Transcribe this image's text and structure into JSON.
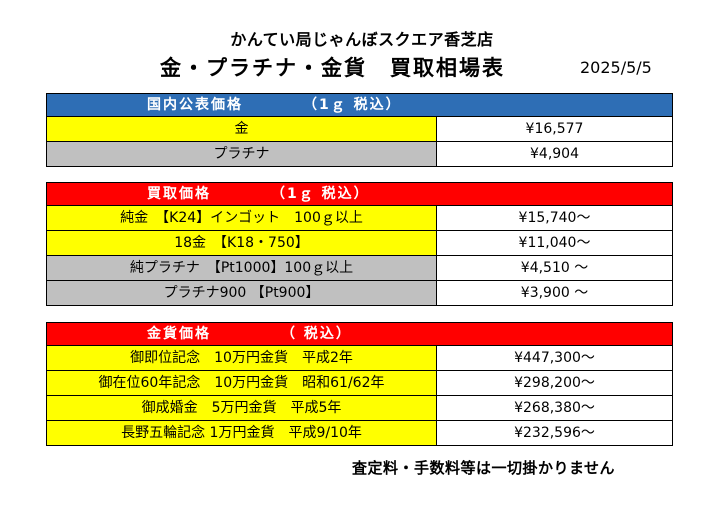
{
  "header": {
    "store_name": "かんてい局じゃんぼスクエア香芝店",
    "title": "金・プラチナ・金貨　買取相場表",
    "date": "2025/5/5"
  },
  "domestic": {
    "header_label": "国内公表価格",
    "header_tax": "（1ｇ 税込）",
    "rows": [
      {
        "label": "金",
        "value": "¥16,577"
      },
      {
        "label": "プラチナ",
        "value": "¥4,904"
      }
    ]
  },
  "purchase": {
    "header_label": "買取価格",
    "header_tax": "（1ｇ 税込）",
    "rows": [
      {
        "label": "純金　【K24】インゴット　100ｇ以上",
        "value": "¥15,740～"
      },
      {
        "label": "18金　【K18・750】",
        "value": "¥11,040～"
      },
      {
        "label": "純プラチナ　【Pt1000】100ｇ以上",
        "value": "¥4,510 ～"
      },
      {
        "label": "プラチナ900 【Pt900】",
        "value": "¥3,900 ～"
      }
    ]
  },
  "coins": {
    "header_label": "金貨価格",
    "header_tax": "（ 税込）",
    "rows": [
      {
        "label": "御即位記念　10万円金貨　平成2年",
        "value": "¥447,300～"
      },
      {
        "label": "御在位60年記念　10万円金貨　昭和61/62年",
        "value": "¥298,200～"
      },
      {
        "label": "御成婚金　5万円金貨　平成5年",
        "value": "¥268,380～"
      },
      {
        "label": "長野五輪記念 1万円金貨　平成9/10年",
        "value": "¥232,596～"
      }
    ]
  },
  "footer_note": "査定料・手数料等は一切掛かりません",
  "colors": {
    "header_blue": "#2e6eb5",
    "header_red": "#ff0000",
    "gold_row": "#ffff00",
    "platinum_row": "#c0c0c0"
  }
}
